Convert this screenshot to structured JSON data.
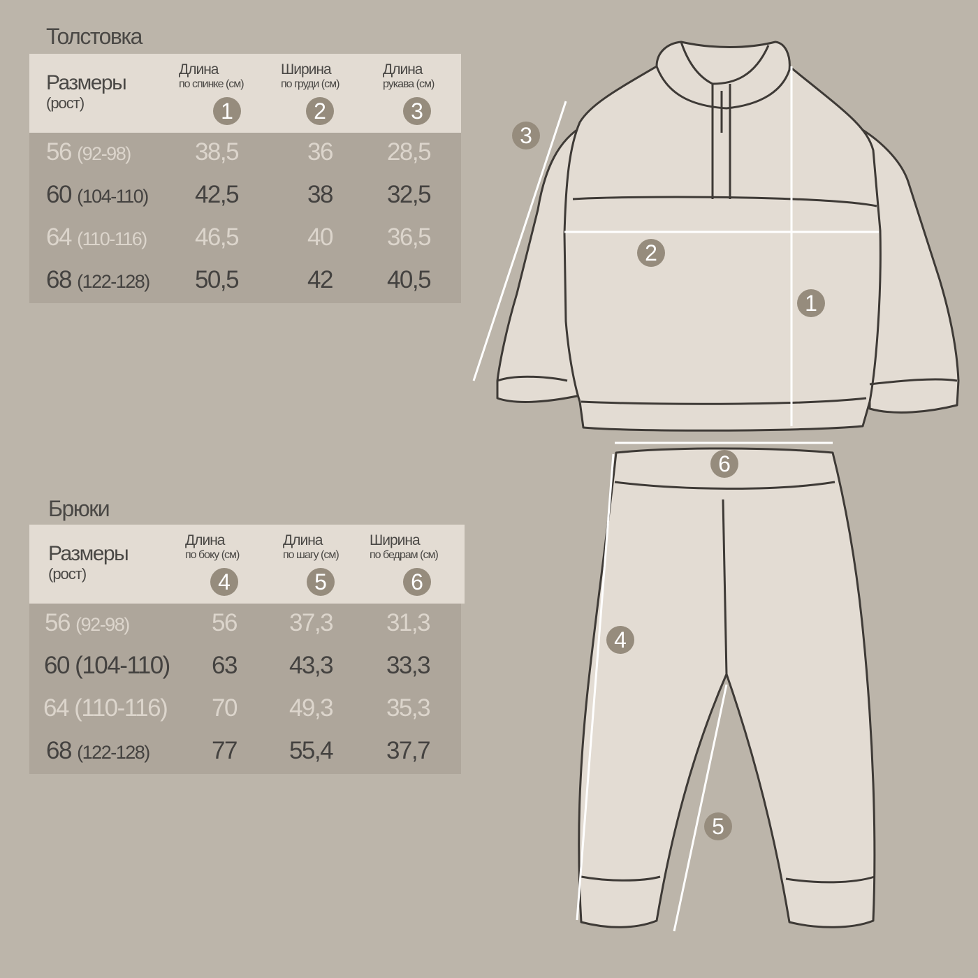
{
  "colors": {
    "background": "#bcb5aa",
    "header": "#e3dcd3",
    "body": "#aea69b",
    "badge": "#968c7d",
    "light_text": "#dcd5cc",
    "dark_text": "#444240"
  },
  "hoodie": {
    "title": "Толстовка",
    "sizes_label": "Размеры",
    "height_label": "(рост)",
    "columns": [
      {
        "l1": "Длина",
        "l2": "по спинке (см)",
        "num": "1"
      },
      {
        "l1": "Ширина",
        "l2": "по груди (см)",
        "num": "2"
      },
      {
        "l1": "Длина",
        "l2": "рукава (см)",
        "num": "3"
      }
    ],
    "rows": [
      {
        "size": "56",
        "height": "(92-98)",
        "values": [
          "38,5",
          "36",
          "28,5"
        ]
      },
      {
        "size": "60",
        "height": "(104-110)",
        "values": [
          "42,5",
          "38",
          "32,5"
        ]
      },
      {
        "size": "64",
        "height": "(110-116)",
        "values": [
          "46,5",
          "40",
          "36,5"
        ]
      },
      {
        "size": "68",
        "height": "(122-128)",
        "values": [
          "50,5",
          "42",
          "40,5"
        ]
      }
    ]
  },
  "pants": {
    "title": "Брюки",
    "sizes_label": "Размеры",
    "height_label": "(рост)",
    "columns": [
      {
        "l1": "Длина",
        "l2": "по боку (см)",
        "num": "4"
      },
      {
        "l1": "Длина",
        "l2": "по шагу (см)",
        "num": "5"
      },
      {
        "l1": "Ширина",
        "l2": "по бедрам (см)",
        "num": "6"
      }
    ],
    "rows": [
      {
        "size": "56",
        "height": "(92-98)",
        "values": [
          "56",
          "37,3",
          "31,3"
        ]
      },
      {
        "size": "60",
        "height": "(104-110)",
        "values": [
          "63",
          "43,3",
          "33,3"
        ]
      },
      {
        "size": "64",
        "height": "(110-116)",
        "values": [
          "70",
          "49,3",
          "35,3"
        ]
      },
      {
        "size": "68",
        "height": "(122-128)",
        "values": [
          "77",
          "55,4",
          "37,7"
        ]
      }
    ]
  },
  "diagram_markers": [
    "1",
    "2",
    "3",
    "4",
    "5",
    "6"
  ]
}
